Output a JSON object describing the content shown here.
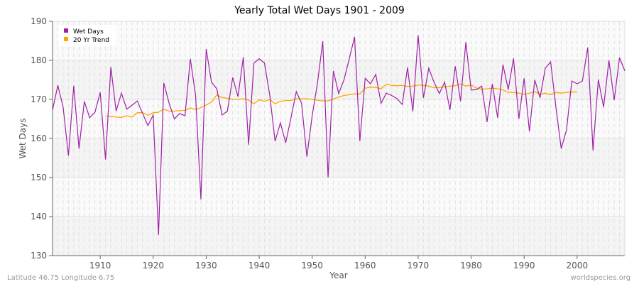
{
  "chart_data": {
    "type": "line",
    "title": "Yearly Total Wet Days 1901 - 2009",
    "xlabel": "Year",
    "ylabel": "Wet Days",
    "xlim": [
      1901,
      2009
    ],
    "ylim": [
      130,
      190
    ],
    "x_ticks": [
      1910,
      1920,
      1930,
      1940,
      1950,
      1960,
      1970,
      1980,
      1990,
      2000
    ],
    "y_ticks": [
      130,
      140,
      150,
      160,
      170,
      180,
      190
    ],
    "grid": true,
    "legend_position": "top-left",
    "series": [
      {
        "name": "Wet Days",
        "color": "#a020a8",
        "x_start": 1901,
        "values": [
          167.3,
          173.6,
          168,
          155.6,
          173.5,
          157.4,
          169.5,
          165.3,
          166.7,
          171.8,
          154.6,
          178.3,
          167,
          171.6,
          167.5,
          168.5,
          169.6,
          166.4,
          163.3,
          166,
          135.3,
          174.2,
          169,
          165,
          166.4,
          165.8,
          180.4,
          171,
          144.4,
          182.9,
          174.4,
          172.7,
          166,
          167,
          175.6,
          170.7,
          180.8,
          158.4,
          179.3,
          180.4,
          179.3,
          171,
          159.3,
          164,
          158.9,
          165.3,
          172,
          169,
          155.3,
          165.8,
          174.2,
          184.9,
          150,
          177.3,
          171.5,
          175,
          180.4,
          186,
          159.3,
          175.4,
          174,
          176.4,
          169,
          171.6,
          171,
          170.2,
          168.7,
          178.2,
          166.9,
          186.4,
          170.4,
          178,
          174.4,
          171.5,
          174.4,
          167.3,
          178.5,
          169.5,
          184.7,
          172.4,
          172.5,
          173.4,
          164.2,
          174,
          165.3,
          178.9,
          172.5,
          180.5,
          165,
          175.4,
          161.8,
          175,
          170.4,
          178,
          179.6,
          168,
          157.4,
          162.2,
          174.7,
          174,
          174.7,
          183.3,
          156.9,
          175.1,
          168,
          180,
          169.8,
          180.7,
          177.3
        ]
      },
      {
        "name": "20 Yr Trend",
        "color": "#ffa500",
        "x_start": 1911,
        "values": [
          165.8,
          165.6,
          165.5,
          165.4,
          165.8,
          165.5,
          166.6,
          166.6,
          165.9,
          166.6,
          166.7,
          167.5,
          167.0,
          167.0,
          167.1,
          167.2,
          167.8,
          167.4,
          167.9,
          168.6,
          169.3,
          171.1,
          170.5,
          170.3,
          170.0,
          170.0,
          170.2,
          169.8,
          168.9,
          169.9,
          169.5,
          170.0,
          168.9,
          169.5,
          169.7,
          169.7,
          170.2,
          170.1,
          170.2,
          170.0,
          169.8,
          169.6,
          169.6,
          170.1,
          170.6,
          171.0,
          171.2,
          171.4,
          171.4,
          172.9,
          173.1,
          173.1,
          172.7,
          173.9,
          173.6,
          173.5,
          173.6,
          173.3,
          173.4,
          173.7,
          173.6,
          173.4,
          173.0,
          173.0,
          173.2,
          173.4,
          173.5,
          174.0,
          173.4,
          173.7,
          172.9,
          172.6,
          172.7,
          172.9,
          172.7,
          172.4,
          171.8,
          171.8,
          171.6,
          171.3,
          171.6,
          172.0,
          171.3,
          171.6,
          171.2,
          171.8,
          171.6,
          171.8,
          171.9,
          171.9
        ]
      }
    ]
  },
  "footer": {
    "location": "Latitude 46.75 Longitude 6.75",
    "source": "worldspecies.org"
  }
}
